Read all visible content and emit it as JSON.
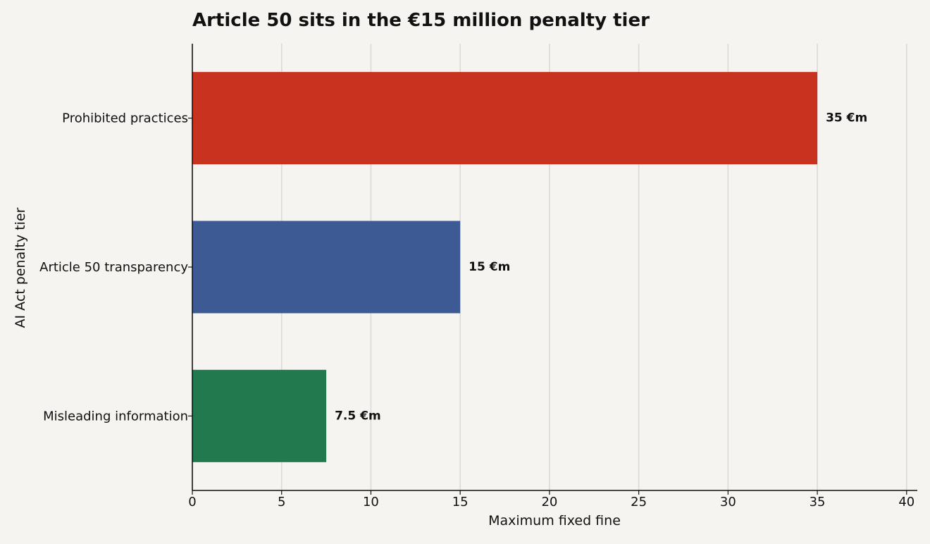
{
  "chart_data": {
    "type": "bar",
    "orientation": "horizontal",
    "title": "Article 50 sits in the €15 million penalty tier",
    "xlabel": "Maximum fixed fine",
    "ylabel": "AI Act penalty tier",
    "categories": [
      "Prohibited practices",
      "Article 50 transparency",
      "Misleading information"
    ],
    "values": [
      35,
      15,
      7.5
    ],
    "data_labels": [
      "35 €m",
      "15 €m",
      "7.5 €m"
    ],
    "colors": [
      "#c83320",
      "#3d5a95",
      "#217a4d"
    ],
    "xlim": [
      0,
      40.6
    ],
    "xticks": [
      0,
      5,
      10,
      15,
      20,
      25,
      30,
      35,
      40
    ],
    "grid": "vertical",
    "legend": "none"
  }
}
